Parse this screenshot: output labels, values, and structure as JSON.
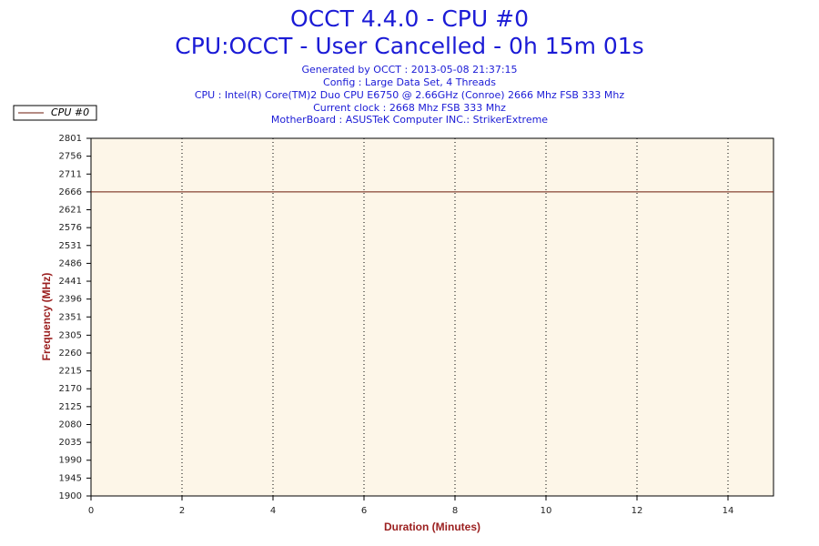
{
  "chart_data": {
    "type": "line",
    "title": "OCCT 4.4.0 - CPU #0",
    "subtitle": "CPU:OCCT - User Cancelled - 0h 15m 01s",
    "info": [
      "Generated by OCCT : 2013-05-08 21:37:15",
      "Config : Large Data Set, 4 Threads",
      "CPU : Intel(R) Core(TM)2 Duo CPU E6750 @ 2.66GHz (Conroe) 2666 Mhz FSB 333 Mhz",
      "Current clock : 2668 Mhz FSB 333 Mhz",
      "MotherBoard : ASUSTeK Computer INC.: StrikerExtreme"
    ],
    "x_label": "Duration (Minutes)",
    "y_label": "Frequency (MHz)",
    "x": [
      0,
      15
    ],
    "series": [
      {
        "name": "CPU #0",
        "color": "#6b1a0a",
        "values": [
          2666,
          2666
        ]
      }
    ],
    "xlim": [
      0,
      15
    ],
    "xticks": [
      0,
      2,
      4,
      6,
      8,
      10,
      12,
      14
    ],
    "ylim": [
      1900,
      2801
    ],
    "yticks": [
      1900,
      1945,
      1990,
      2035,
      2080,
      2125,
      2170,
      2215,
      2260,
      2305,
      2351,
      2396,
      2441,
      2486,
      2531,
      2576,
      2621,
      2666,
      2711,
      2756,
      2801
    ],
    "grid": true,
    "legend": "top-left"
  }
}
